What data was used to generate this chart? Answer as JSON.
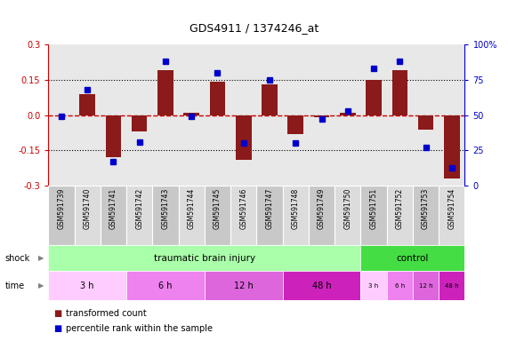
{
  "title": "GDS4911 / 1374246_at",
  "samples": [
    "GSM591739",
    "GSM591740",
    "GSM591741",
    "GSM591742",
    "GSM591743",
    "GSM591744",
    "GSM591745",
    "GSM591746",
    "GSM591747",
    "GSM591748",
    "GSM591749",
    "GSM591750",
    "GSM591751",
    "GSM591752",
    "GSM591753",
    "GSM591754"
  ],
  "bar_values": [
    0.0,
    0.09,
    -0.18,
    -0.07,
    0.19,
    0.01,
    0.14,
    -0.19,
    0.13,
    -0.08,
    -0.01,
    0.01,
    0.15,
    0.19,
    -0.06,
    -0.27
  ],
  "dot_values": [
    49,
    68,
    17,
    31,
    88,
    49,
    80,
    30,
    75,
    30,
    47,
    53,
    83,
    88,
    27,
    13
  ],
  "bar_color": "#8B1A1A",
  "dot_color": "#0000CD",
  "ylim_left": [
    -0.3,
    0.3
  ],
  "ylim_right": [
    0,
    100
  ],
  "yticks_left": [
    -0.3,
    -0.15,
    0.0,
    0.15,
    0.3
  ],
  "yticks_right": [
    0,
    25,
    50,
    75,
    100
  ],
  "ytick_labels_right": [
    "0",
    "25",
    "50",
    "75",
    "100%"
  ],
  "hlines": [
    0.15,
    -0.15
  ],
  "zero_line_color": "#CC0000",
  "chart_bg": "#E8E8E8",
  "shock_row": {
    "tbi_label": "traumatic brain injury",
    "tbi_color": "#AAFFAA",
    "tbi_count": 12,
    "ctrl_label": "control",
    "ctrl_color": "#44DD44",
    "ctrl_count": 4
  },
  "time_row": {
    "seg_starts": [
      0,
      3,
      6,
      9,
      12,
      13,
      14,
      15
    ],
    "seg_ends": [
      3,
      6,
      9,
      12,
      13,
      14,
      15,
      16
    ],
    "seg_labels": [
      "3 h",
      "6 h",
      "12 h",
      "48 h",
      "3 h",
      "6 h",
      "12 h",
      "48 h"
    ],
    "seg_colors": [
      "#FFCCFF",
      "#EE82EE",
      "#DD66DD",
      "#CC22BB",
      "#FFCCFF",
      "#EE82EE",
      "#DD66DD",
      "#CC22BB"
    ]
  },
  "legend": [
    {
      "label": "transformed count",
      "color": "#8B1A1A"
    },
    {
      "label": "percentile rank within the sample",
      "color": "#0000CD"
    }
  ]
}
